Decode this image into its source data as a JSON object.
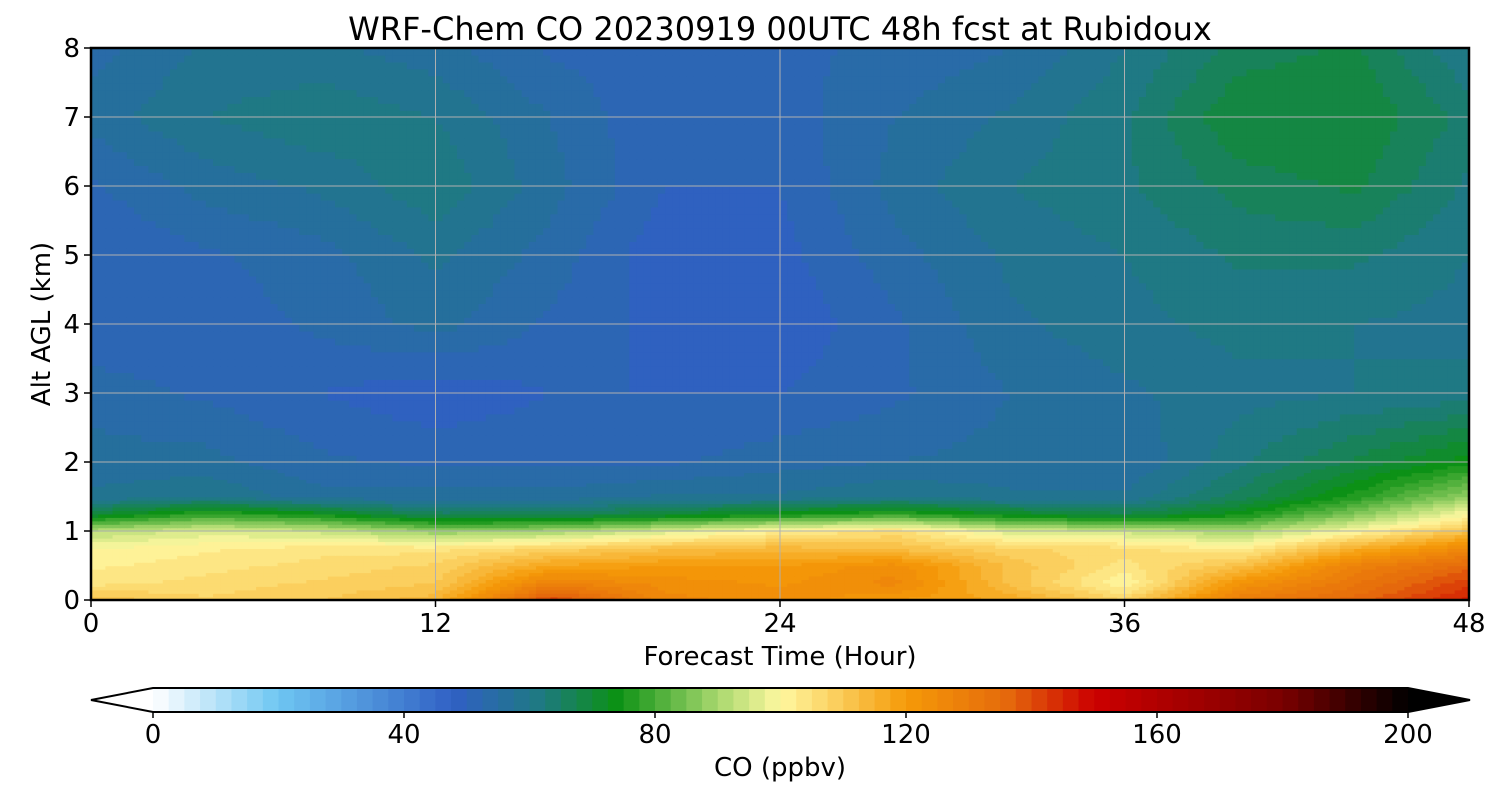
{
  "chart_data": {
    "type": "heatmap",
    "title": "WRF-Chem CO  20230919 00UTC 48h fcst at Rubidoux",
    "xlabel": "Forecast Time (Hour)",
    "ylabel": "Alt AGL (km)",
    "x_ticks": [
      0,
      12,
      24,
      36,
      48
    ],
    "y_ticks": [
      0,
      1,
      2,
      3,
      4,
      5,
      6,
      7,
      8
    ],
    "xlim": [
      0,
      48
    ],
    "ylim": [
      0,
      8
    ],
    "grid": true,
    "colorbar": {
      "label": "CO  (ppbv)",
      "ticks": [
        0,
        40,
        80,
        120,
        160,
        200
      ],
      "range": [
        0,
        200
      ],
      "extend": "both",
      "orientation": "horizontal",
      "placement": "bottom",
      "levels": 80,
      "stops": [
        {
          "v": 0,
          "c": "#ffffff"
        },
        {
          "v": 20,
          "c": "#6ec6f2"
        },
        {
          "v": 48,
          "c": "#3060c4"
        },
        {
          "v": 62,
          "c": "#1e7a80"
        },
        {
          "v": 74,
          "c": "#0c9114"
        },
        {
          "v": 90,
          "c": "#a8d86e"
        },
        {
          "v": 100,
          "c": "#fff8a0"
        },
        {
          "v": 120,
          "c": "#f59a08"
        },
        {
          "v": 136,
          "c": "#e56a0c"
        },
        {
          "v": 150,
          "c": "#cc0000"
        },
        {
          "v": 180,
          "c": "#7a0000"
        },
        {
          "v": 200,
          "c": "#000000"
        }
      ]
    },
    "grid_x": [
      0,
      4,
      8,
      12,
      16,
      20,
      24,
      28,
      32,
      36,
      40,
      44,
      48
    ],
    "grid_y": [
      0,
      0.25,
      0.5,
      0.75,
      1.0,
      1.25,
      1.5,
      2,
      3,
      4,
      5,
      6,
      7,
      8
    ],
    "values": [
      [
        112,
        108,
        110,
        114,
        142,
        126,
        124,
        120,
        117,
        108,
        130,
        136,
        146
      ],
      [
        104,
        106,
        108,
        110,
        128,
        124,
        122,
        126,
        112,
        100,
        122,
        132,
        142
      ],
      [
        102,
        104,
        106,
        108,
        118,
        120,
        120,
        124,
        112,
        104,
        112,
        128,
        136
      ],
      [
        100,
        102,
        104,
        104,
        108,
        112,
        114,
        112,
        108,
        106,
        102,
        116,
        126
      ],
      [
        92,
        96,
        94,
        88,
        90,
        96,
        102,
        106,
        96,
        94,
        90,
        100,
        112
      ],
      [
        70,
        78,
        74,
        66,
        66,
        70,
        74,
        78,
        72,
        68,
        74,
        86,
        100
      ],
      [
        58,
        60,
        56,
        56,
        56,
        58,
        58,
        60,
        58,
        58,
        66,
        76,
        88
      ],
      [
        56,
        56,
        53,
        52,
        52,
        52,
        54,
        55,
        56,
        55,
        62,
        68,
        74
      ],
      [
        54,
        52,
        50,
        48,
        50,
        50,
        50,
        52,
        55,
        57,
        59,
        60,
        61
      ],
      [
        50,
        51,
        53,
        56,
        52,
        49,
        48,
        52,
        57,
        59,
        61,
        60,
        59
      ],
      [
        50,
        52,
        54,
        58,
        54,
        48,
        49,
        54,
        58,
        60,
        63,
        63,
        60
      ],
      [
        52,
        56,
        58,
        62,
        56,
        50,
        50,
        56,
        60,
        62,
        66,
        68,
        62
      ],
      [
        56,
        60,
        62,
        60,
        55,
        50,
        51,
        55,
        58,
        62,
        70,
        70,
        64
      ],
      [
        54,
        58,
        58,
        56,
        52,
        51,
        52,
        53,
        55,
        60,
        66,
        68,
        60
      ]
    ]
  }
}
